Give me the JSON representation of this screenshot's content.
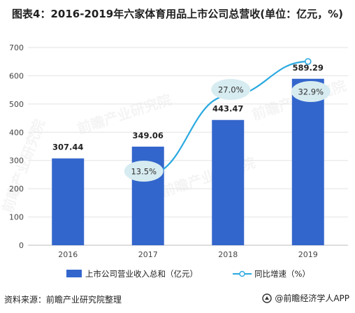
{
  "title": "图表4：2016-2019年六家体育用品上市公司总营收(单位：亿元，%)",
  "source": "资料来源：前瞻产业研究院整理",
  "brand": "@前瞻经济学人APP",
  "watermark": "前瞻产业研究院",
  "colors": {
    "bar": "#3366cc",
    "line": "#2aa9e0",
    "bubble": "#d7ecf1",
    "grid": "#e3e3e3"
  },
  "chart_data": {
    "type": "bar",
    "categories": [
      "2016",
      "2017",
      "2018",
      "2019"
    ],
    "ylim": [
      0,
      700
    ],
    "yticks": [
      0,
      100,
      200,
      300,
      400,
      500,
      600,
      700
    ],
    "series": [
      {
        "name": "上市公司营业收入总和（亿元）",
        "type": "bar",
        "values": [
          307.44,
          349.06,
          443.47,
          589.29
        ],
        "labels": [
          "307.44",
          "349.06",
          "443.47",
          "589.29"
        ]
      },
      {
        "name": "同比增速（%）",
        "type": "line",
        "values": [
          null,
          13.5,
          27.0,
          32.9
        ],
        "labels": [
          "",
          "13.5%",
          "27.0%",
          "32.9%"
        ]
      }
    ]
  }
}
